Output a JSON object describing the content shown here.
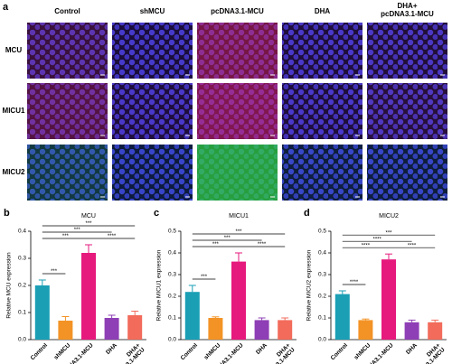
{
  "images": {
    "panel_label": "a",
    "columns": [
      "Control",
      "shMCU",
      "pcDNA3.1-MCU",
      "DHA",
      "DHA+\npcDNA3.1-MCU"
    ],
    "rows": [
      "MCU",
      "MICU1",
      "MICU2"
    ]
  },
  "chart_data": [
    {
      "type": "bar",
      "panel_label": "b",
      "title": "MCU",
      "y_label": "Relative MCU expression",
      "categories": [
        "Control",
        "shMCU",
        "pcDNA3.1-MCU",
        "DHA",
        "DHA+\npcDNA3.1-MCU"
      ],
      "values": [
        0.2,
        0.07,
        0.32,
        0.08,
        0.09
      ],
      "errors": [
        0.02,
        0.015,
        0.03,
        0.01,
        0.015
      ],
      "colors": [
        "#1a9fb5",
        "#f39325",
        "#e6197d",
        "#8e3fb5",
        "#f26b5b"
      ],
      "ylim": [
        0,
        0.4
      ],
      "yticks": [
        {
          "value": 0,
          "label": "0.0"
        },
        0.1,
        0.2,
        0.3,
        0.4
      ],
      "significance": [
        {
          "between": [
            "Control",
            "shMCU"
          ],
          "label": "***"
        },
        {
          "between": [
            "Control",
            "pcDNA3.1-MCU"
          ],
          "label": "***"
        },
        {
          "between": [
            "pcDNA3.1-MCU",
            "DHA+\npcDNA3.1-MCU"
          ],
          "label": "****"
        },
        {
          "between": [
            "Control",
            "DHA"
          ],
          "label": "***"
        },
        {
          "between": [
            "Control",
            "DHA+\npcDNA3.1-MCU"
          ],
          "label": "***"
        }
      ]
    },
    {
      "type": "bar",
      "panel_label": "c",
      "title": "MICU1",
      "y_label": "Relative MICU1 expression",
      "categories": [
        "Control",
        "shMCU",
        "pcDNA3.1-MCU",
        "DHA",
        "DHA+\npcDNA3.1-MCU"
      ],
      "values": [
        0.22,
        0.1,
        0.36,
        0.09,
        0.09
      ],
      "errors": [
        0.03,
        0.005,
        0.04,
        0.01,
        0.01
      ],
      "colors": [
        "#1a9fb5",
        "#f39325",
        "#e6197d",
        "#8e3fb5",
        "#f26b5b"
      ],
      "ylim": [
        0,
        0.5
      ],
      "yticks": [
        {
          "value": 0,
          "label": "0.0"
        },
        0.1,
        0.2,
        0.3,
        0.4,
        0.5
      ],
      "significance": [
        {
          "between": [
            "Control",
            "shMCU"
          ],
          "label": "***"
        },
        {
          "between": [
            "Control",
            "pcDNA3.1-MCU"
          ],
          "label": "***"
        },
        {
          "between": [
            "pcDNA3.1-MCU",
            "DHA+\npcDNA3.1-MCU"
          ],
          "label": "****"
        },
        {
          "between": [
            "Control",
            "DHA"
          ],
          "label": "***"
        },
        {
          "between": [
            "Control",
            "DHA+\npcDNA3.1-MCU"
          ],
          "label": "***"
        }
      ]
    },
    {
      "type": "bar",
      "panel_label": "d",
      "title": "MICU2",
      "y_label": "Relative MICU2 expression",
      "categories": [
        "Control",
        "shMCU",
        "pcDNA3.1-MCU",
        "DHA",
        "DHA+\npcDNA3.1-MCU"
      ],
      "values": [
        0.21,
        0.09,
        0.37,
        0.08,
        0.08
      ],
      "errors": [
        0.015,
        0.005,
        0.025,
        0.01,
        0.01
      ],
      "colors": [
        "#1a9fb5",
        "#f39325",
        "#e6197d",
        "#8e3fb5",
        "#f26b5b"
      ],
      "ylim": [
        0,
        0.5
      ],
      "yticks": [
        {
          "value": 0,
          "label": "0.0"
        },
        0.1,
        0.2,
        0.3,
        0.4,
        0.5
      ],
      "significance": [
        {
          "between": [
            "Control",
            "shMCU"
          ],
          "label": "****"
        },
        {
          "between": [
            "Control",
            "pcDNA3.1-MCU"
          ],
          "label": "****"
        },
        {
          "between": [
            "pcDNA3.1-MCU",
            "DHA+\npcDNA3.1-MCU"
          ],
          "label": "****"
        },
        {
          "between": [
            "Control",
            "DHA"
          ],
          "label": "****"
        },
        {
          "between": [
            "Control",
            "DHA+\npcDNA3.1-MCU"
          ],
          "label": "***"
        }
      ]
    }
  ]
}
